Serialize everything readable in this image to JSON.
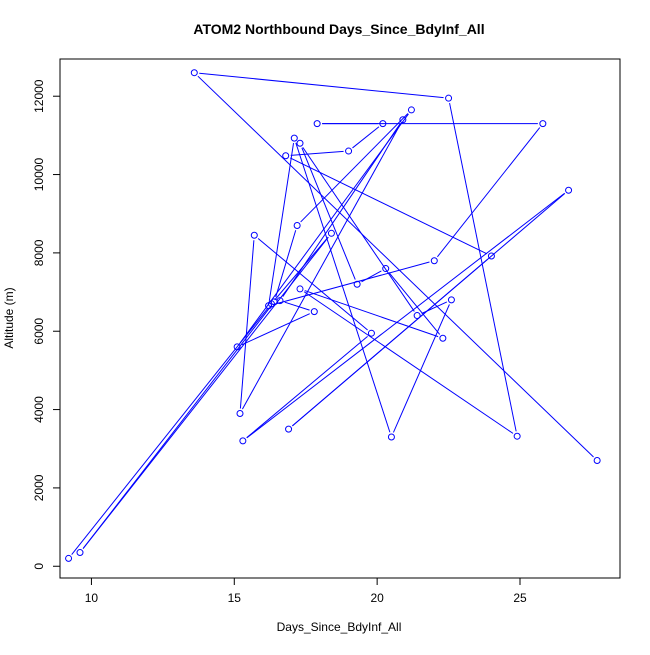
{
  "chart_data": {
    "type": "line",
    "title": "ATOM2 Northbound Days_Since_BdyInf_All",
    "xlabel": "Days_Since_BdyInf_All",
    "ylabel": "Altitude (m)",
    "xlim": [
      8.9,
      28.5
    ],
    "ylim": [
      -300,
      12950
    ],
    "x_ticks": [
      10,
      15,
      20,
      25
    ],
    "y_ticks": [
      0,
      2000,
      4000,
      6000,
      8000,
      10000,
      12000
    ],
    "grid": false,
    "markers": "open-circle",
    "line_color": "#0000FF",
    "series": [
      {
        "points": [
          {
            "x": 9.2,
            "y": 200
          },
          {
            "x": 16.3,
            "y": 6700
          },
          {
            "x": 18.4,
            "y": 8500
          },
          {
            "x": 9.6,
            "y": 350
          },
          {
            "x": 16.4,
            "y": 6750
          },
          {
            "x": 17.2,
            "y": 8700
          },
          {
            "x": 21.2,
            "y": 11650
          },
          {
            "x": 15.1,
            "y": 5600
          },
          {
            "x": 17.8,
            "y": 6500
          },
          {
            "x": 16.6,
            "y": 6780
          },
          {
            "x": 20.9,
            "y": 11400
          },
          {
            "x": 15.2,
            "y": 3900
          },
          {
            "x": 15.7,
            "y": 8450
          },
          {
            "x": 19.8,
            "y": 5950
          },
          {
            "x": 15.3,
            "y": 3200
          },
          {
            "x": 26.7,
            "y": 9600
          },
          {
            "x": 16.9,
            "y": 3500
          },
          {
            "x": 24.0,
            "y": 7920
          },
          {
            "x": 16.8,
            "y": 10480
          },
          {
            "x": 19.0,
            "y": 10600
          },
          {
            "x": 20.2,
            "y": 11300
          },
          {
            "x": 17.9,
            "y": 11300
          },
          {
            "x": 25.8,
            "y": 11300
          },
          {
            "x": 22.0,
            "y": 7800
          },
          {
            "x": 16.2,
            "y": 6650
          },
          {
            "x": 17.1,
            "y": 10930
          },
          {
            "x": 20.5,
            "y": 3300
          },
          {
            "x": 22.6,
            "y": 6800
          },
          {
            "x": 21.4,
            "y": 6400
          },
          {
            "x": 17.3,
            "y": 10800
          },
          {
            "x": 19.3,
            "y": 7200
          },
          {
            "x": 20.3,
            "y": 7600
          },
          {
            "x": 22.3,
            "y": 5820
          },
          {
            "x": 17.3,
            "y": 7080
          },
          {
            "x": 24.9,
            "y": 3320
          },
          {
            "x": 22.5,
            "y": 11950
          },
          {
            "x": 13.6,
            "y": 12600
          },
          {
            "x": 27.7,
            "y": 2700
          }
        ]
      }
    ]
  }
}
